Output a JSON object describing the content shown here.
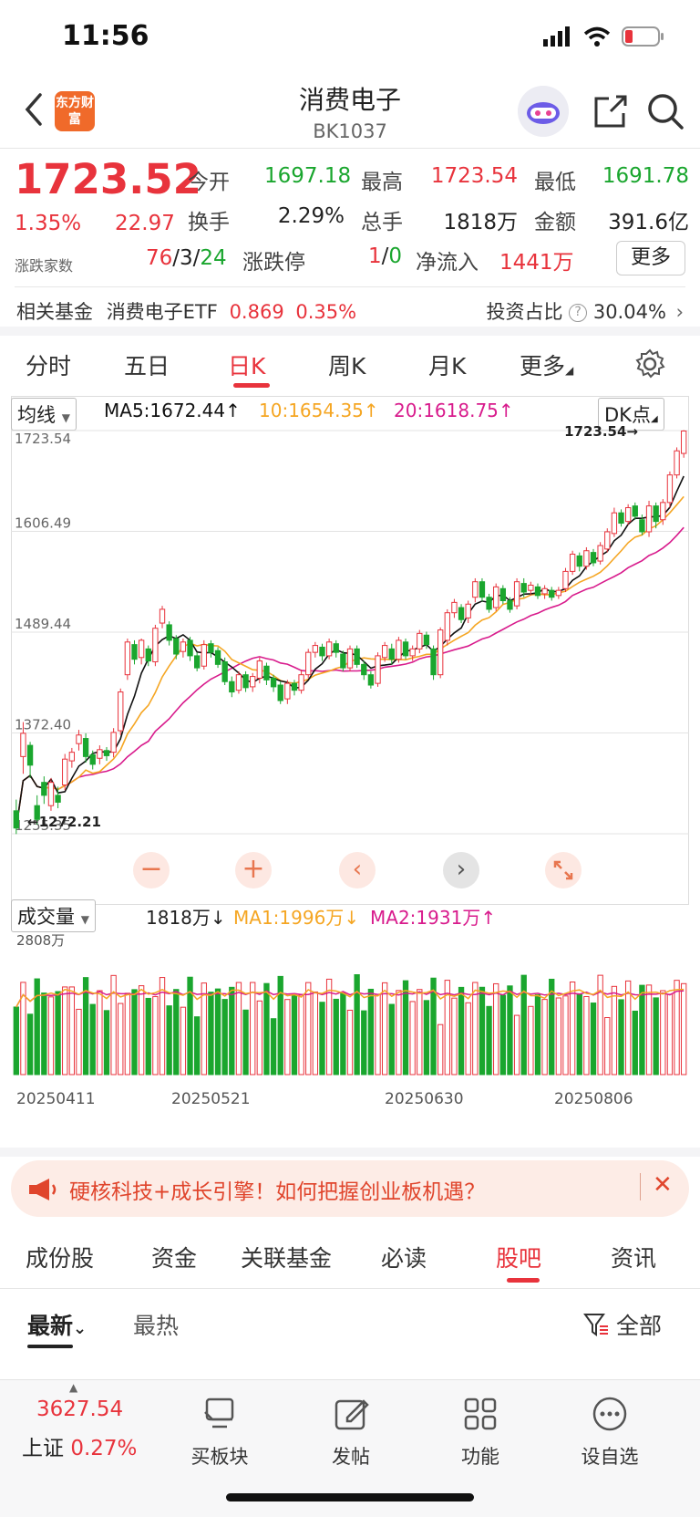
{
  "status": {
    "time": "11:56"
  },
  "header": {
    "title": "消费电子",
    "code": "BK1037",
    "logo_text": "东方财富"
  },
  "quote": {
    "price": "1723.52",
    "change_pct": "1.35%",
    "change": "22.97",
    "open_label": "今开",
    "open": "1697.18",
    "high_label": "最高",
    "high": "1723.54",
    "low_label": "最低",
    "low": "1691.78",
    "turnover_label": "换手",
    "turnover": "2.29%",
    "volume_label": "总手",
    "volume": "1818万",
    "amount_label": "金额",
    "amount": "391.6亿",
    "breadth_label": "涨跌家数",
    "up": "76",
    "flat": "3",
    "down": "24",
    "limit_label": "涨跌停",
    "limit_up": "1",
    "limit_down": "0",
    "inflow_label": "净流入",
    "inflow": "1441万",
    "more": "更多"
  },
  "fund": {
    "label": "相关基金",
    "name": "消费电子ETF",
    "price": "0.869",
    "pct": "0.35%",
    "ratio_label": "投资占比",
    "ratio": "30.04%"
  },
  "period_tabs": [
    "分时",
    "五日",
    "日K",
    "周K",
    "月K",
    "更多"
  ],
  "chart_controls": {
    "ma_select": "均线",
    "ma5": "MA5:1672.44",
    "ma10": "10:1654.35",
    "ma20": "20:1618.75",
    "dk_button": "DK点",
    "vol_select": "成交量",
    "vol": "1818万",
    "vol_ma1": "MA1:1996万",
    "vol_ma2": "MA2:1931万"
  },
  "chart_data": {
    "type": "candlestick",
    "y_ticks": [
      "1723.54",
      "1606.49",
      "1489.44",
      "1372.40",
      "1255.35"
    ],
    "ylim": [
      1255.35,
      1723.54
    ],
    "price_high_marker": "1723.54",
    "price_low_marker": "1272.21",
    "vol_max_label": "2808万",
    "x_ticks": [
      "20250411",
      "20250521",
      "20250630",
      "20250806"
    ],
    "candles": [
      {
        "o": 1282,
        "c": 1262,
        "h": 1295,
        "l": 1255
      },
      {
        "o": 1345,
        "c": 1372,
        "h": 1385,
        "l": 1325
      },
      {
        "o": 1358,
        "c": 1335,
        "h": 1362,
        "l": 1320
      },
      {
        "o": 1288,
        "c": 1272,
        "h": 1300,
        "l": 1266
      },
      {
        "o": 1315,
        "c": 1300,
        "h": 1322,
        "l": 1290
      },
      {
        "o": 1288,
        "c": 1315,
        "h": 1320,
        "l": 1282
      },
      {
        "o": 1300,
        "c": 1292,
        "h": 1310,
        "l": 1285
      },
      {
        "o": 1312,
        "c": 1342,
        "h": 1348,
        "l": 1306
      },
      {
        "o": 1340,
        "c": 1350,
        "h": 1355,
        "l": 1332
      },
      {
        "o": 1360,
        "c": 1370,
        "h": 1376,
        "l": 1352
      },
      {
        "o": 1366,
        "c": 1345,
        "h": 1372,
        "l": 1338
      },
      {
        "o": 1347,
        "c": 1336,
        "h": 1352,
        "l": 1330
      },
      {
        "o": 1343,
        "c": 1353,
        "h": 1358,
        "l": 1336
      },
      {
        "o": 1352,
        "c": 1346,
        "h": 1356,
        "l": 1340
      },
      {
        "o": 1350,
        "c": 1373,
        "h": 1378,
        "l": 1344
      },
      {
        "o": 1375,
        "c": 1420,
        "h": 1424,
        "l": 1370
      },
      {
        "o": 1440,
        "c": 1478,
        "h": 1482,
        "l": 1434
      },
      {
        "o": 1475,
        "c": 1458,
        "h": 1480,
        "l": 1452
      },
      {
        "o": 1460,
        "c": 1480,
        "h": 1482,
        "l": 1452
      },
      {
        "o": 1470,
        "c": 1456,
        "h": 1474,
        "l": 1450
      },
      {
        "o": 1455,
        "c": 1494,
        "h": 1498,
        "l": 1450
      },
      {
        "o": 1500,
        "c": 1516,
        "h": 1520,
        "l": 1494
      },
      {
        "o": 1498,
        "c": 1480,
        "h": 1502,
        "l": 1474
      },
      {
        "o": 1482,
        "c": 1464,
        "h": 1486,
        "l": 1458
      },
      {
        "o": 1467,
        "c": 1478,
        "h": 1482,
        "l": 1460
      },
      {
        "o": 1480,
        "c": 1462,
        "h": 1484,
        "l": 1456
      },
      {
        "o": 1462,
        "c": 1448,
        "h": 1466,
        "l": 1444
      },
      {
        "o": 1450,
        "c": 1475,
        "h": 1480,
        "l": 1446
      },
      {
        "o": 1476,
        "c": 1466,
        "h": 1480,
        "l": 1460
      },
      {
        "o": 1468,
        "c": 1452,
        "h": 1472,
        "l": 1448
      },
      {
        "o": 1455,
        "c": 1432,
        "h": 1460,
        "l": 1428
      },
      {
        "o": 1432,
        "c": 1420,
        "h": 1438,
        "l": 1414
      },
      {
        "o": 1422,
        "c": 1440,
        "h": 1444,
        "l": 1418
      },
      {
        "o": 1440,
        "c": 1425,
        "h": 1444,
        "l": 1420
      },
      {
        "o": 1426,
        "c": 1438,
        "h": 1442,
        "l": 1420
      },
      {
        "o": 1436,
        "c": 1456,
        "h": 1460,
        "l": 1430
      },
      {
        "o": 1450,
        "c": 1434,
        "h": 1454,
        "l": 1428
      },
      {
        "o": 1436,
        "c": 1426,
        "h": 1440,
        "l": 1420
      },
      {
        "o": 1428,
        "c": 1410,
        "h": 1432,
        "l": 1406
      },
      {
        "o": 1412,
        "c": 1430,
        "h": 1434,
        "l": 1406
      },
      {
        "o": 1430,
        "c": 1422,
        "h": 1434,
        "l": 1416
      },
      {
        "o": 1422,
        "c": 1440,
        "h": 1446,
        "l": 1418
      },
      {
        "o": 1440,
        "c": 1466,
        "h": 1470,
        "l": 1436
      },
      {
        "o": 1466,
        "c": 1474,
        "h": 1478,
        "l": 1460
      },
      {
        "o": 1472,
        "c": 1462,
        "h": 1476,
        "l": 1456
      },
      {
        "o": 1462,
        "c": 1478,
        "h": 1482,
        "l": 1458
      },
      {
        "o": 1476,
        "c": 1466,
        "h": 1480,
        "l": 1460
      },
      {
        "o": 1464,
        "c": 1448,
        "h": 1468,
        "l": 1444
      },
      {
        "o": 1448,
        "c": 1470,
        "h": 1474,
        "l": 1444
      },
      {
        "o": 1470,
        "c": 1452,
        "h": 1474,
        "l": 1448
      },
      {
        "o": 1452,
        "c": 1440,
        "h": 1456,
        "l": 1434
      },
      {
        "o": 1440,
        "c": 1428,
        "h": 1444,
        "l": 1424
      },
      {
        "o": 1430,
        "c": 1462,
        "h": 1466,
        "l": 1426
      },
      {
        "o": 1460,
        "c": 1474,
        "h": 1478,
        "l": 1455
      },
      {
        "o": 1470,
        "c": 1458,
        "h": 1476,
        "l": 1452
      },
      {
        "o": 1458,
        "c": 1480,
        "h": 1484,
        "l": 1454
      },
      {
        "o": 1478,
        "c": 1462,
        "h": 1482,
        "l": 1458
      },
      {
        "o": 1462,
        "c": 1470,
        "h": 1474,
        "l": 1456
      },
      {
        "o": 1470,
        "c": 1488,
        "h": 1492,
        "l": 1465
      },
      {
        "o": 1486,
        "c": 1475,
        "h": 1490,
        "l": 1470
      },
      {
        "o": 1470,
        "c": 1440,
        "h": 1474,
        "l": 1434
      },
      {
        "o": 1440,
        "c": 1492,
        "h": 1495,
        "l": 1436
      },
      {
        "o": 1480,
        "c": 1512,
        "h": 1516,
        "l": 1474
      },
      {
        "o": 1512,
        "c": 1524,
        "h": 1528,
        "l": 1506
      },
      {
        "o": 1518,
        "c": 1504,
        "h": 1522,
        "l": 1500
      },
      {
        "o": 1506,
        "c": 1522,
        "h": 1526,
        "l": 1500
      },
      {
        "o": 1530,
        "c": 1548,
        "h": 1552,
        "l": 1524
      },
      {
        "o": 1548,
        "c": 1530,
        "h": 1552,
        "l": 1525
      },
      {
        "o": 1530,
        "c": 1516,
        "h": 1534,
        "l": 1512
      },
      {
        "o": 1518,
        "c": 1542,
        "h": 1546,
        "l": 1514
      },
      {
        "o": 1540,
        "c": 1526,
        "h": 1544,
        "l": 1522
      },
      {
        "o": 1526,
        "c": 1516,
        "h": 1530,
        "l": 1512
      },
      {
        "o": 1520,
        "c": 1548,
        "h": 1552,
        "l": 1516
      },
      {
        "o": 1546,
        "c": 1536,
        "h": 1552,
        "l": 1530
      },
      {
        "o": 1538,
        "c": 1544,
        "h": 1548,
        "l": 1532
      },
      {
        "o": 1542,
        "c": 1532,
        "h": 1546,
        "l": 1528
      },
      {
        "o": 1534,
        "c": 1540,
        "h": 1544,
        "l": 1528
      },
      {
        "o": 1538,
        "c": 1530,
        "h": 1542,
        "l": 1526
      },
      {
        "o": 1532,
        "c": 1538,
        "h": 1542,
        "l": 1528
      },
      {
        "o": 1540,
        "c": 1560,
        "h": 1564,
        "l": 1536
      },
      {
        "o": 1560,
        "c": 1580,
        "h": 1584,
        "l": 1556
      },
      {
        "o": 1578,
        "c": 1566,
        "h": 1582,
        "l": 1560
      },
      {
        "o": 1566,
        "c": 1584,
        "h": 1588,
        "l": 1562
      },
      {
        "o": 1582,
        "c": 1570,
        "h": 1586,
        "l": 1566
      },
      {
        "o": 1572,
        "c": 1590,
        "h": 1594,
        "l": 1568
      },
      {
        "o": 1586,
        "c": 1606,
        "h": 1610,
        "l": 1582
      },
      {
        "o": 1604,
        "c": 1628,
        "h": 1634,
        "l": 1600
      },
      {
        "o": 1628,
        "c": 1616,
        "h": 1632,
        "l": 1612
      },
      {
        "o": 1618,
        "c": 1634,
        "h": 1638,
        "l": 1614
      },
      {
        "o": 1636,
        "c": 1624,
        "h": 1640,
        "l": 1620
      },
      {
        "o": 1620,
        "c": 1606,
        "h": 1626,
        "l": 1602
      },
      {
        "o": 1606,
        "c": 1636,
        "h": 1642,
        "l": 1600
      },
      {
        "o": 1636,
        "c": 1618,
        "h": 1640,
        "l": 1610
      },
      {
        "o": 1620,
        "c": 1640,
        "h": 1644,
        "l": 1614
      },
      {
        "o": 1640,
        "c": 1672,
        "h": 1676,
        "l": 1634
      },
      {
        "o": 1672,
        "c": 1700,
        "h": 1704,
        "l": 1668
      },
      {
        "o": 1697,
        "c": 1723,
        "h": 1724,
        "l": 1692
      }
    ]
  },
  "banner": {
    "text": "硬核科技+成长引擎！如何把握创业板机遇？"
  },
  "bottom_tabs": [
    "成份股",
    "资金",
    "关联基金",
    "必读",
    "股吧",
    "资讯"
  ],
  "sort": {
    "latest": "最新",
    "hot": "最热",
    "filter": "全部"
  },
  "bottom_nav": {
    "index_value": "3627.54",
    "index_name": "上证",
    "index_pct": "0.27%",
    "items": [
      "买板块",
      "发帖",
      "功能",
      "设自选"
    ]
  },
  "colors": {
    "up": "#e8333c",
    "down": "#1aa62e",
    "ma5": "#111111",
    "ma10": "#f5a623",
    "ma20": "#d81b8c"
  }
}
